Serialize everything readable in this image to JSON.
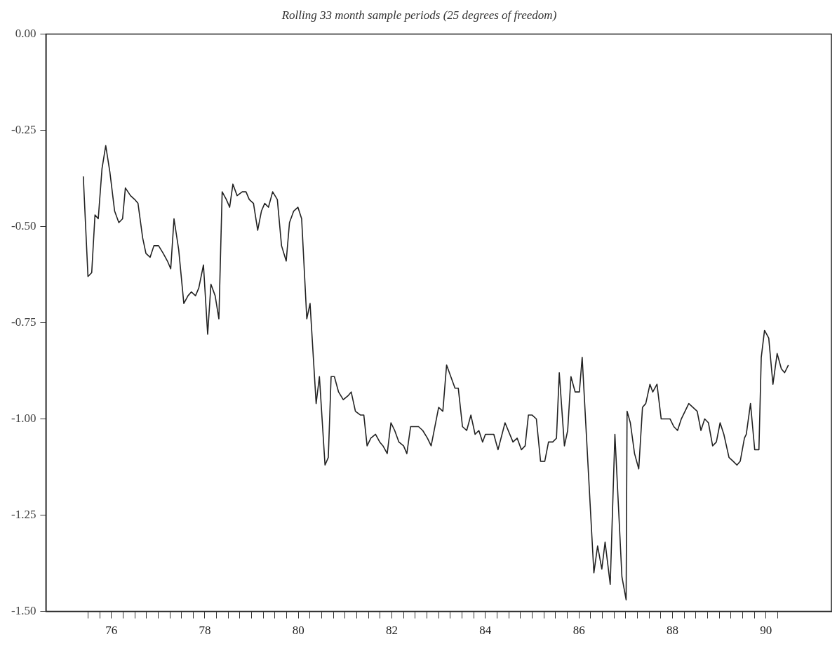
{
  "chart_data": {
    "type": "line",
    "title": "Rolling 33 month sample periods (25 degrees of freedom)",
    "xlim": [
      75.1,
      91.9
    ],
    "ylim": [
      -1.5,
      0
    ],
    "yticks": [
      {
        "value": 0,
        "label": "0.00"
      },
      {
        "value": -0.25,
        "label": "-0.25"
      },
      {
        "value": -0.5,
        "label": "-0.50"
      },
      {
        "value": -0.75,
        "label": "-0.75"
      },
      {
        "value": -1,
        "label": "-1.00"
      },
      {
        "value": -1.25,
        "label": "-1.25"
      },
      {
        "value": -1.5,
        "label": "-1.50"
      }
    ],
    "xticks": [
      {
        "value": 76,
        "label": null
      },
      {
        "value": 76.25,
        "label": null
      },
      {
        "value": 76.5,
        "label": "76"
      },
      {
        "value": 76.75,
        "label": null
      },
      {
        "value": 77,
        "label": null
      },
      {
        "value": 77.25,
        "label": null
      },
      {
        "value": 77.5,
        "label": null
      },
      {
        "value": 77.75,
        "label": null
      },
      {
        "value": 78,
        "label": null
      },
      {
        "value": 78.25,
        "label": null
      },
      {
        "value": 78.5,
        "label": "78"
      },
      {
        "value": 78.75,
        "label": null
      },
      {
        "value": 79,
        "label": null
      },
      {
        "value": 79.25,
        "label": null
      },
      {
        "value": 79.5,
        "label": null
      },
      {
        "value": 79.75,
        "label": null
      },
      {
        "value": 80,
        "label": null
      },
      {
        "value": 80.25,
        "label": null
      },
      {
        "value": 80.5,
        "label": "80"
      },
      {
        "value": 80.75,
        "label": null
      },
      {
        "value": 81,
        "label": null
      },
      {
        "value": 81.25,
        "label": null
      },
      {
        "value": 81.5,
        "label": null
      },
      {
        "value": 81.75,
        "label": null
      },
      {
        "value": 82,
        "label": null
      },
      {
        "value": 82.25,
        "label": null
      },
      {
        "value": 82.5,
        "label": "82"
      },
      {
        "value": 82.75,
        "label": null
      },
      {
        "value": 83,
        "label": null
      },
      {
        "value": 83.25,
        "label": null
      },
      {
        "value": 83.5,
        "label": null
      },
      {
        "value": 83.75,
        "label": null
      },
      {
        "value": 84,
        "label": null
      },
      {
        "value": 84.25,
        "label": null
      },
      {
        "value": 84.5,
        "label": "84"
      },
      {
        "value": 84.75,
        "label": null
      },
      {
        "value": 85,
        "label": null
      },
      {
        "value": 85.25,
        "label": null
      },
      {
        "value": 85.5,
        "label": null
      },
      {
        "value": 85.75,
        "label": null
      },
      {
        "value": 86,
        "label": null
      },
      {
        "value": 86.25,
        "label": null
      },
      {
        "value": 86.5,
        "label": "86"
      },
      {
        "value": 86.75,
        "label": null
      },
      {
        "value": 87,
        "label": null
      },
      {
        "value": 87.25,
        "label": null
      },
      {
        "value": 87.5,
        "label": null
      },
      {
        "value": 87.75,
        "label": null
      },
      {
        "value": 88,
        "label": null
      },
      {
        "value": 88.25,
        "label": null
      },
      {
        "value": 88.5,
        "label": "88"
      },
      {
        "value": 88.75,
        "label": null
      },
      {
        "value": 89,
        "label": null
      },
      {
        "value": 89.25,
        "label": null
      },
      {
        "value": 89.5,
        "label": null
      },
      {
        "value": 89.75,
        "label": null
      },
      {
        "value": 90,
        "label": null
      },
      {
        "value": 90.25,
        "label": null
      },
      {
        "value": 90.5,
        "label": "90"
      },
      {
        "value": 90.75,
        "label": null
      }
    ],
    "marker": "none",
    "line_style": "solid",
    "legend": false,
    "series": [
      {
        "color": "#222222",
        "x": [
          75.9,
          76.0,
          76.08,
          76.15,
          76.22,
          76.3,
          76.38,
          76.47,
          76.57,
          76.66,
          76.74,
          76.8,
          76.91,
          77.0,
          77.07,
          77.17,
          77.24,
          77.33,
          77.41,
          77.51,
          77.61,
          77.7,
          77.77,
          77.84,
          77.94,
          78.05,
          78.14,
          78.21,
          78.3,
          78.37,
          78.47,
          78.56,
          78.63,
          78.72,
          78.8,
          78.87,
          78.96,
          79.03,
          79.1,
          79.19,
          79.3,
          79.38,
          79.45,
          79.54,
          79.63,
          79.71,
          79.78,
          79.86,
          79.95,
          80.05,
          80.14,
          80.24,
          80.31,
          80.4,
          80.49,
          80.57,
          80.68,
          80.75,
          80.88,
          80.95,
          81.07,
          81.14,
          81.2,
          81.27,
          81.36,
          81.46,
          81.56,
          81.63,
          81.72,
          81.83,
          81.9,
          81.97,
          82.05,
          82.15,
          82.24,
          82.31,
          82.4,
          82.48,
          82.56,
          82.65,
          82.75,
          82.82,
          82.9,
          82.98,
          83.07,
          83.16,
          83.26,
          83.34,
          83.5,
          83.59,
          83.67,
          83.76,
          83.85,
          83.92,
          84.01,
          84.1,
          84.19,
          84.28,
          84.36,
          84.44,
          84.5,
          84.68,
          84.77,
          84.92,
          85.09,
          85.18,
          85.27,
          85.35,
          85.42,
          85.5,
          85.59,
          85.68,
          85.77,
          85.85,
          85.94,
          86.02,
          86.08,
          86.19,
          86.26,
          86.33,
          86.42,
          86.51,
          86.57,
          86.82,
          86.9,
          86.99,
          87.06,
          87.17,
          87.27,
          87.42,
          87.51,
          87.53,
          87.6,
          87.69,
          87.78,
          87.86,
          87.93,
          88.02,
          88.08,
          88.17,
          88.26,
          88.35,
          88.45,
          88.53,
          88.61,
          88.69,
          88.77,
          88.85,
          88.94,
          89.03,
          89.11,
          89.19,
          89.27,
          89.36,
          89.44,
          89.52,
          89.6,
          89.71,
          89.8,
          89.88,
          89.95,
          90.04,
          90.08,
          90.17,
          90.26,
          90.35,
          90.4,
          90.47,
          90.56,
          90.65,
          90.74,
          90.83,
          90.9,
          90.98
        ],
        "values": [
          -0.37,
          -0.63,
          -0.62,
          -0.47,
          -0.48,
          -0.35,
          -0.29,
          -0.36,
          -0.46,
          -0.49,
          -0.48,
          -0.4,
          -0.42,
          -0.43,
          -0.44,
          -0.53,
          -0.57,
          -0.58,
          -0.55,
          -0.55,
          -0.57,
          -0.59,
          -0.61,
          -0.48,
          -0.56,
          -0.7,
          -0.68,
          -0.67,
          -0.68,
          -0.66,
          -0.6,
          -0.78,
          -0.65,
          -0.68,
          -0.74,
          -0.41,
          -0.43,
          -0.45,
          -0.39,
          -0.42,
          -0.41,
          -0.41,
          -0.43,
          -0.44,
          -0.51,
          -0.46,
          -0.44,
          -0.45,
          -0.41,
          -0.43,
          -0.55,
          -0.59,
          -0.49,
          -0.46,
          -0.45,
          -0.48,
          -0.74,
          -0.7,
          -0.96,
          -0.89,
          -1.12,
          -1.1,
          -0.89,
          -0.89,
          -0.93,
          -0.95,
          -0.94,
          -0.93,
          -0.98,
          -0.99,
          -0.99,
          -1.07,
          -1.05,
          -1.04,
          -1.06,
          -1.07,
          -1.09,
          -1.01,
          -1.03,
          -1.06,
          -1.07,
          -1.09,
          -1.02,
          -1.02,
          -1.02,
          -1.03,
          -1.05,
          -1.07,
          -0.97,
          -0.98,
          -0.86,
          -0.89,
          -0.92,
          -0.92,
          -1.02,
          -1.03,
          -0.99,
          -1.04,
          -1.03,
          -1.06,
          -1.04,
          -1.04,
          -1.08,
          -1.01,
          -1.06,
          -1.05,
          -1.08,
          -1.07,
          -0.99,
          -0.99,
          -1.0,
          -1.11,
          -1.11,
          -1.06,
          -1.06,
          -1.05,
          -0.88,
          -1.07,
          -1.03,
          -0.89,
          -0.93,
          -0.93,
          -0.84,
          -1.4,
          -1.33,
          -1.39,
          -1.32,
          -1.43,
          -1.04,
          -1.41,
          -1.47,
          -0.98,
          -1.01,
          -1.09,
          -1.13,
          -0.97,
          -0.96,
          -0.91,
          -0.93,
          -0.91,
          -1.0,
          -1.0,
          -1.0,
          -1.02,
          -1.03,
          -1.0,
          -0.98,
          -0.96,
          -0.97,
          -0.98,
          -1.03,
          -1.0,
          -1.01,
          -1.07,
          -1.06,
          -1.01,
          -1.04,
          -1.1,
          -1.11,
          -1.12,
          -1.11,
          -1.05,
          -1.04,
          -0.96,
          -1.08,
          -1.08,
          -0.84,
          -0.77,
          -0.79,
          -0.91,
          -0.83,
          -0.87,
          -0.88,
          -0.86
        ]
      }
    ]
  }
}
